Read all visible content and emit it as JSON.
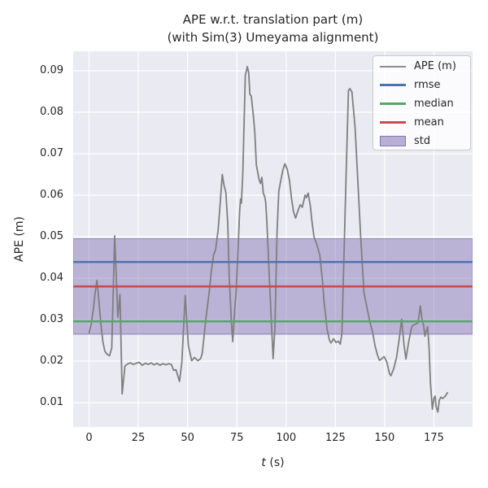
{
  "title": {
    "line1": "APE w.r.t. translation part (m)",
    "line2": "(with Sim(3) Umeyama alignment)"
  },
  "axes": {
    "xlabel_var": "t",
    "xlabel_unit": " (s)",
    "ylabel": "APE (m)",
    "x_tick_labels": [
      "0",
      "25",
      "50",
      "75",
      "100",
      "125",
      "150",
      "175"
    ],
    "y_tick_labels": [
      "0.01",
      "0.02",
      "0.03",
      "0.04",
      "0.05",
      "0.06",
      "0.07",
      "0.08",
      "0.09"
    ]
  },
  "legend": {
    "items": [
      {
        "label": "APE (m)",
        "swatch": "line",
        "color": "#8c8c8c",
        "thickness": 2
      },
      {
        "label": "rmse",
        "swatch": "line",
        "color": "#4c72b0",
        "thickness": 3
      },
      {
        "label": "median",
        "swatch": "line",
        "color": "#55a868",
        "thickness": 3
      },
      {
        "label": "mean",
        "swatch": "line",
        "color": "#c44e52",
        "thickness": 3
      },
      {
        "label": "std",
        "swatch": "patch",
        "color": "rgba(129,114,178,0.55)",
        "border": "rgba(129,114,178,0.95)"
      }
    ]
  },
  "colors": {
    "axes_bg": "#eaeaf2",
    "grid": "#ffffff",
    "ape_line": "#7f7f7f",
    "rmse": "#4c72b0",
    "median": "#55a868",
    "mean": "#c44e52",
    "std_fill": "rgba(129,114,178,0.45)",
    "std_edge": "rgba(129,114,178,0.8)",
    "text": "#262626"
  },
  "chart_data": {
    "type": "line",
    "title": "APE w.r.t. translation part (m) (with Sim(3) Umeyama alignment)",
    "xlabel": "t (s)",
    "ylabel": "APE (m)",
    "xlim": [
      -8.05,
      194.6
    ],
    "ylim": [
      0.00412,
      0.09471
    ],
    "x_ticks": [
      0,
      25,
      50,
      75,
      100,
      125,
      150,
      175
    ],
    "y_ticks": [
      0.01,
      0.02,
      0.03,
      0.04,
      0.05,
      0.06,
      0.07,
      0.08,
      0.09
    ],
    "grid": true,
    "legend_position": "upper right",
    "stats": {
      "rmse": 0.0439,
      "mean": 0.038,
      "median": 0.0296,
      "std": 0.0115,
      "std_band": [
        0.0265,
        0.0495
      ]
    },
    "series": [
      {
        "name": "APE (m)",
        "x": [
          0,
          1.1,
          2.2,
          3,
          4,
          5,
          6,
          7,
          8,
          9.3,
          10.4,
          11.5,
          13,
          14.6,
          15.7,
          16.8,
          18.2,
          19.5,
          21,
          22.5,
          24,
          25.5,
          27,
          28.5,
          30,
          31.5,
          33,
          34.5,
          36,
          37.5,
          39,
          40.5,
          41.8,
          42.9,
          44.1,
          45.9,
          47.1,
          48.8,
          50.4,
          52.1,
          53.5,
          55.2,
          56.6,
          57.4,
          59.4,
          61,
          62.1,
          63.2,
          64.2,
          65.5,
          66.6,
          67.6,
          68.5,
          69.4,
          70.4,
          71.1,
          72.1,
          72.9,
          74,
          74.6,
          75.9,
          76.4,
          76.9,
          77.3,
          78,
          78.7,
          79.3,
          80.3,
          81,
          81.6,
          82.3,
          83.4,
          84.1,
          84.9,
          86.2,
          87,
          87.7,
          88.4,
          89.1,
          89.6,
          90.2,
          91.8,
          93.4,
          94.3,
          95.4,
          96.3,
          97.2,
          98.3,
          99.4,
          100.6,
          101.7,
          102.7,
          103.7,
          104.8,
          106.1,
          107.2,
          108.2,
          109.6,
          110.3,
          111.2,
          112.3,
          113,
          114.1,
          115.8,
          117.1,
          118.5,
          119.2,
          120,
          120.7,
          122,
          122.8,
          124.1,
          125.3,
          126.5,
          127.5,
          128.3,
          129.4,
          130.5,
          131.6,
          132.3,
          133.4,
          135,
          136.4,
          137.8,
          139.5,
          141.2,
          142.6,
          144,
          145.1,
          146.4,
          147.4,
          148.3,
          149.7,
          151.1,
          152.5,
          153.2,
          154.6,
          156,
          157.3,
          158.6,
          159.8,
          160.8,
          162.2,
          163.6,
          164.2,
          165.6,
          167,
          168.1,
          169.1,
          169.8,
          170.4,
          171.1,
          171.8,
          172.5,
          173.2,
          174.2,
          175,
          175.6,
          176.1,
          177,
          177.7,
          178.5,
          179.4,
          180.8,
          181.9
        ],
        "y": [
          0.0268,
          0.029,
          0.0325,
          0.0362,
          0.0395,
          0.0345,
          0.029,
          0.0247,
          0.0224,
          0.0216,
          0.0213,
          0.0232,
          0.0502,
          0.0306,
          0.0361,
          0.0121,
          0.0188,
          0.0193,
          0.0196,
          0.0192,
          0.0195,
          0.0197,
          0.019,
          0.0195,
          0.0192,
          0.0196,
          0.0191,
          0.0195,
          0.019,
          0.0194,
          0.0191,
          0.0194,
          0.0192,
          0.0178,
          0.0179,
          0.0151,
          0.0197,
          0.0358,
          0.0237,
          0.0201,
          0.0209,
          0.0201,
          0.0206,
          0.0218,
          0.0306,
          0.0368,
          0.042,
          0.0456,
          0.0469,
          0.0516,
          0.0585,
          0.065,
          0.0623,
          0.0607,
          0.0529,
          0.0404,
          0.0306,
          0.0247,
          0.033,
          0.0365,
          0.0502,
          0.056,
          0.0591,
          0.0581,
          0.065,
          0.078,
          0.0888,
          0.091,
          0.0896,
          0.0843,
          0.0839,
          0.079,
          0.0751,
          0.0673,
          0.0639,
          0.0628,
          0.0643,
          0.0605,
          0.0597,
          0.0584,
          0.0541,
          0.037,
          0.0206,
          0.028,
          0.051,
          0.061,
          0.0633,
          0.066,
          0.0676,
          0.0662,
          0.0636,
          0.0594,
          0.0561,
          0.0545,
          0.0564,
          0.0577,
          0.0571,
          0.06,
          0.0594,
          0.0605,
          0.0574,
          0.0541,
          0.05,
          0.0478,
          0.0456,
          0.0391,
          0.0345,
          0.0312,
          0.028,
          0.025,
          0.0244,
          0.0254,
          0.0245,
          0.0248,
          0.0241,
          0.0267,
          0.046,
          0.066,
          0.0852,
          0.0857,
          0.0849,
          0.0763,
          0.0633,
          0.0502,
          0.0365,
          0.0325,
          0.0293,
          0.0267,
          0.0237,
          0.0214,
          0.0202,
          0.0205,
          0.0211,
          0.0198,
          0.0169,
          0.0165,
          0.0182,
          0.0208,
          0.025,
          0.0301,
          0.024,
          0.0205,
          0.0247,
          0.028,
          0.0286,
          0.0289,
          0.0293,
          0.0333,
          0.0296,
          0.0286,
          0.026,
          0.0273,
          0.0283,
          0.0234,
          0.0149,
          0.0084,
          0.011,
          0.0116,
          0.009,
          0.0077,
          0.0106,
          0.0113,
          0.011,
          0.0116,
          0.0124
        ]
      }
    ]
  }
}
